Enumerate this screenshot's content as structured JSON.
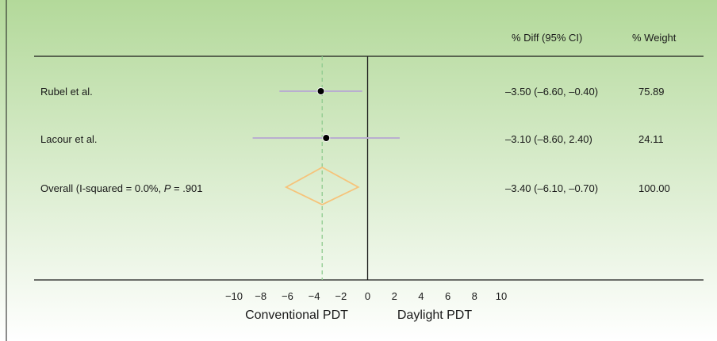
{
  "chart_data": {
    "type": "forest",
    "header": {
      "estimate": "% Diff (95% CI)",
      "weight": "% Weight"
    },
    "rows": [
      {
        "label": "Rubel et al.",
        "estimate": -3.5,
        "ci": [
          -6.6,
          -0.4
        ],
        "ci_text": "–3.50 (–6.60, –0.40)",
        "weight": "75.89"
      },
      {
        "label": "Lacour et al.",
        "estimate": -3.1,
        "ci": [
          -8.6,
          2.4
        ],
        "ci_text": "–3.10 (–8.60, 2.40)",
        "weight": "24.11"
      }
    ],
    "overall": {
      "label_main": "Overall (I-squared = 0.0%, ",
      "label_p": "P",
      "label_tail": " = .901",
      "estimate": -3.4,
      "ci": [
        -6.1,
        -0.7
      ],
      "ci_text": "–3.40 (–6.10, –0.70)",
      "weight": "100.00"
    },
    "x_ticks": [
      {
        "value": -10,
        "label": "−10"
      },
      {
        "value": -8,
        "label": "−8"
      },
      {
        "value": -6,
        "label": "−6"
      },
      {
        "value": -4,
        "label": "−4"
      },
      {
        "value": -2,
        "label": "−2"
      },
      {
        "value": 0,
        "label": "0"
      },
      {
        "value": 2,
        "label": "2"
      },
      {
        "value": 4,
        "label": "4"
      },
      {
        "value": 6,
        "label": "6"
      },
      {
        "value": 8,
        "label": "8"
      },
      {
        "value": 10,
        "label": "10"
      }
    ],
    "xlim": [
      -10,
      10
    ],
    "null_value": 0,
    "left_label": "Conventional PDT",
    "right_label": "Daylight PDT",
    "colors": {
      "background_top": "#b3d99a",
      "background_bottom": "#ffffff",
      "ci_line": "#b9aed0",
      "diamond": "#f6c37a",
      "dashed_line": "#8fcb8f",
      "point": "#000000",
      "axis": "#1a1a1a"
    }
  }
}
